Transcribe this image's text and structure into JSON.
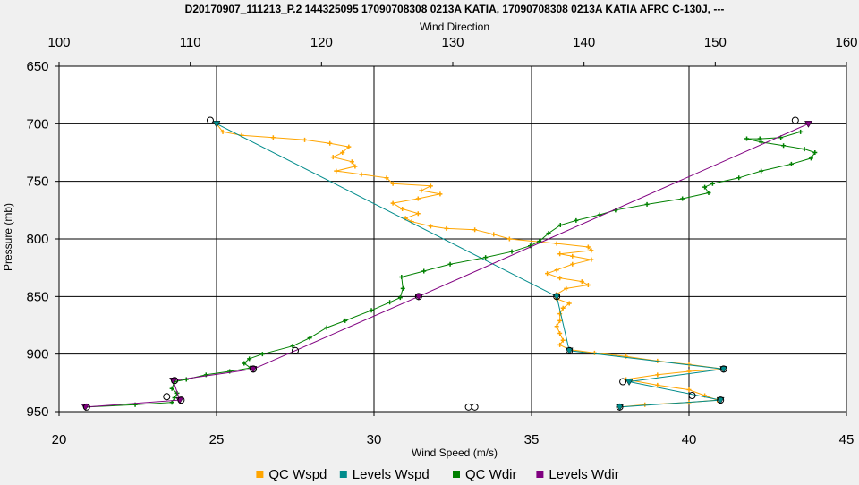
{
  "chart_data": {
    "type": "line",
    "title": "D20170907_111213_P.2 144325095 17090708308 0213A KATIA, 17090708308 0213A KATIA AFRC C-130J, ---",
    "top_axis": {
      "label": "Wind Direction",
      "range": [
        100,
        160
      ],
      "ticks": [
        100,
        110,
        120,
        130,
        140,
        150,
        160
      ]
    },
    "bottom_axis": {
      "label": "Wind Speed (m/s)",
      "range": [
        20,
        45
      ],
      "ticks": [
        20,
        25,
        30,
        35,
        40,
        45
      ]
    },
    "left_axis": {
      "label": "Pressure (mb)",
      "range": [
        650,
        950
      ],
      "inverted": true,
      "ticks": [
        650,
        700,
        750,
        800,
        850,
        900,
        950
      ]
    },
    "grid": true,
    "legend_position": "bottom",
    "series": [
      {
        "name": "QC Wspd",
        "color": "#FFA500",
        "axis": "speed",
        "marker": "plus",
        "points": [
          [
            25.0,
            700
          ],
          [
            25.2,
            707
          ],
          [
            25.8,
            710
          ],
          [
            26.8,
            712
          ],
          [
            27.8,
            714
          ],
          [
            28.6,
            717
          ],
          [
            29.2,
            720
          ],
          [
            29.0,
            725
          ],
          [
            28.7,
            729
          ],
          [
            29.3,
            733
          ],
          [
            29.4,
            737
          ],
          [
            28.8,
            741
          ],
          [
            29.6,
            744
          ],
          [
            30.4,
            747
          ],
          [
            30.6,
            752
          ],
          [
            31.8,
            754
          ],
          [
            31.5,
            758
          ],
          [
            32.1,
            761
          ],
          [
            31.4,
            765
          ],
          [
            30.6,
            769
          ],
          [
            30.9,
            774
          ],
          [
            31.4,
            778
          ],
          [
            31.0,
            782
          ],
          [
            31.2,
            785
          ],
          [
            31.8,
            789
          ],
          [
            32.3,
            791
          ],
          [
            33.2,
            792
          ],
          [
            33.8,
            796
          ],
          [
            34.3,
            800
          ],
          [
            35.8,
            804
          ],
          [
            36.8,
            807
          ],
          [
            36.9,
            810
          ],
          [
            35.9,
            813
          ],
          [
            36.3,
            815
          ],
          [
            36.9,
            818
          ],
          [
            36.3,
            822
          ],
          [
            35.8,
            827
          ],
          [
            35.5,
            830
          ],
          [
            35.9,
            834
          ],
          [
            36.6,
            837
          ],
          [
            36.8,
            840
          ],
          [
            36.1,
            843
          ],
          [
            35.8,
            848
          ],
          [
            35.8,
            852
          ],
          [
            36.2,
            856
          ],
          [
            36.0,
            860
          ],
          [
            35.9,
            865
          ],
          [
            35.9,
            871
          ],
          [
            35.8,
            876
          ],
          [
            35.9,
            882
          ],
          [
            36.0,
            888
          ],
          [
            35.9,
            892
          ],
          [
            36.2,
            896
          ],
          [
            37.0,
            899
          ],
          [
            38.0,
            902
          ],
          [
            39.0,
            906
          ],
          [
            40.0,
            909
          ],
          [
            41.1,
            913
          ],
          [
            40.0,
            915
          ],
          [
            39.0,
            918
          ],
          [
            38.0,
            922
          ],
          [
            39.0,
            927
          ],
          [
            40.0,
            931
          ],
          [
            40.5,
            936
          ],
          [
            40.9,
            940
          ],
          [
            40.0,
            942
          ],
          [
            38.6,
            944
          ],
          [
            37.8,
            946
          ]
        ]
      },
      {
        "name": "Levels Wspd",
        "color": "#008B8B",
        "axis": "speed",
        "marker": "triangle",
        "points": [
          [
            25.0,
            700
          ],
          [
            35.8,
            850
          ],
          [
            36.2,
            897
          ],
          [
            41.1,
            913
          ],
          [
            38.1,
            924
          ],
          [
            41.0,
            940
          ],
          [
            37.8,
            946
          ]
        ]
      },
      {
        "name": "QC Wdir",
        "color": "#008000",
        "axis": "direction",
        "marker": "plus",
        "points": [
          [
            156.5,
            707
          ],
          [
            155.0,
            712
          ],
          [
            153.4,
            713
          ],
          [
            152.4,
            713
          ],
          [
            153.5,
            716
          ],
          [
            155.2,
            719
          ],
          [
            156.8,
            722
          ],
          [
            157.6,
            725
          ],
          [
            157.3,
            730
          ],
          [
            155.8,
            735
          ],
          [
            153.5,
            741
          ],
          [
            151.8,
            747
          ],
          [
            149.8,
            752
          ],
          [
            149.2,
            755
          ],
          [
            149.5,
            760
          ],
          [
            147.5,
            765
          ],
          [
            144.8,
            770
          ],
          [
            142.4,
            775
          ],
          [
            141.2,
            779
          ],
          [
            139.4,
            784
          ],
          [
            138.2,
            788
          ],
          [
            137.3,
            795
          ],
          [
            136.6,
            802
          ],
          [
            135.9,
            806
          ],
          [
            134.5,
            811
          ],
          [
            132.5,
            816
          ],
          [
            129.8,
            822
          ],
          [
            127.8,
            828
          ],
          [
            126.1,
            833
          ],
          [
            126.2,
            843
          ],
          [
            126.0,
            851
          ],
          [
            125.2,
            855
          ],
          [
            123.8,
            862
          ],
          [
            121.8,
            871
          ],
          [
            120.4,
            877
          ],
          [
            119.1,
            886
          ],
          [
            117.8,
            893
          ],
          [
            115.5,
            900
          ],
          [
            114.5,
            904
          ],
          [
            114.1,
            908
          ],
          [
            114.6,
            912
          ],
          [
            113.0,
            915
          ],
          [
            111.2,
            918
          ],
          [
            109.7,
            922
          ],
          [
            108.8,
            924
          ],
          [
            108.6,
            930
          ],
          [
            109.0,
            934
          ],
          [
            108.8,
            938
          ],
          [
            108.6,
            942
          ],
          [
            105.8,
            944
          ],
          [
            102.0,
            946
          ]
        ]
      },
      {
        "name": "Levels Wdir",
        "color": "#800080",
        "axis": "direction",
        "marker": "triangle",
        "points": [
          [
            157.1,
            700
          ],
          [
            127.4,
            850
          ],
          [
            114.8,
            913
          ],
          [
            108.7,
            923
          ],
          [
            109.2,
            940
          ],
          [
            102.0,
            946
          ]
        ]
      }
    ],
    "circle_markers": [
      {
        "axis": "speed",
        "x": 24.8,
        "y": 697
      },
      {
        "axis": "speed",
        "x": 35.8,
        "y": 850
      },
      {
        "axis": "speed",
        "x": 36.2,
        "y": 897
      },
      {
        "axis": "speed",
        "x": 41.1,
        "y": 913
      },
      {
        "axis": "speed",
        "x": 37.9,
        "y": 924
      },
      {
        "axis": "speed",
        "x": 41.0,
        "y": 940
      },
      {
        "axis": "speed",
        "x": 40.1,
        "y": 936
      },
      {
        "axis": "speed",
        "x": 37.8,
        "y": 946
      },
      {
        "axis": "speed",
        "x": 33.2,
        "y": 946
      },
      {
        "axis": "speed",
        "x": 33.0,
        "y": 946
      },
      {
        "axis": "direction",
        "x": 156.1,
        "y": 697
      },
      {
        "axis": "direction",
        "x": 127.4,
        "y": 850
      },
      {
        "axis": "direction",
        "x": 118.0,
        "y": 897
      },
      {
        "axis": "direction",
        "x": 114.8,
        "y": 913
      },
      {
        "axis": "direction",
        "x": 108.8,
        "y": 923
      },
      {
        "axis": "direction",
        "x": 109.3,
        "y": 940
      },
      {
        "axis": "direction",
        "x": 108.2,
        "y": 937
      },
      {
        "axis": "direction",
        "x": 102.1,
        "y": 946
      }
    ]
  }
}
